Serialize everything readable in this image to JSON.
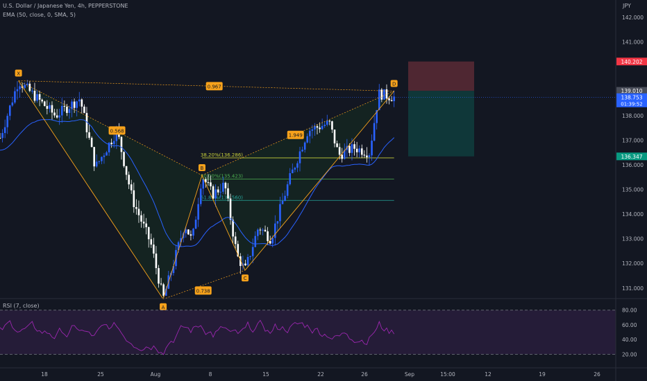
{
  "legend": {
    "symbol_line": "U.S. Dollar / Japanese Yen, 4h, PEPPERSTONE",
    "ema_line": "EMA (50, close, 0, SMA, 5)",
    "rsi_line": "RSI (7, close)",
    "currency": "JPY"
  },
  "colors": {
    "background": "#131722",
    "up_candle": "#2962ff",
    "down_candle": "#ffffff",
    "ema": "#2962ff",
    "pattern": "#f7a21b",
    "fib_38": "#c8d13a",
    "fib_50": "#4caf50",
    "fib_61": "#26a69a",
    "rsi": "#9c27b0",
    "stop_zone": "#5a2a35",
    "target_zone": "#0f3b3c"
  },
  "chart_data": {
    "type": "candlestick",
    "symbol": "U.S. Dollar / Japanese Yen",
    "timeframe": "4h",
    "broker": "PEPPERSTONE",
    "ylim": [
      130.6,
      142.7
    ],
    "y_ticks": [
      131.0,
      132.0,
      133.0,
      134.0,
      135.0,
      136.0,
      137.0,
      138.0,
      141.0,
      142.0
    ],
    "x_ticks": [
      "18",
      "25",
      "Aug",
      "8",
      "15",
      "22",
      "26",
      "Sep",
      "15:00",
      "12",
      "19",
      "26"
    ],
    "price_labels": [
      {
        "value": "140.202",
        "price": 140.202,
        "color": "#f23645"
      },
      {
        "value": "139.010",
        "price": 139.01,
        "color": "#4a4e5a"
      },
      {
        "value": "138.753",
        "price": 138.753,
        "color": "#2962ff",
        "sub": "01:39:52"
      },
      {
        "value": "136.347",
        "price": 136.347,
        "color": "#089981"
      }
    ],
    "current_price": 138.753,
    "xabcd": {
      "points": [
        {
          "label": "X",
          "t": 0.03,
          "price": 139.42
        },
        {
          "label": "A",
          "t": 0.265,
          "price": 130.55
        },
        {
          "label": "B",
          "t": 0.328,
          "price": 135.58
        },
        {
          "label": "C",
          "t": 0.398,
          "price": 131.72
        },
        {
          "label": "D",
          "t": 0.64,
          "price": 139.0
        }
      ],
      "ratios": [
        {
          "value": "0.967",
          "t": 0.348,
          "price": 139.2
        },
        {
          "value": "0.568",
          "t": 0.19,
          "price": 137.4
        },
        {
          "value": "0.738",
          "t": 0.33,
          "price": 130.9
        },
        {
          "value": "1.949",
          "t": 0.48,
          "price": 137.22
        }
      ]
    },
    "fib_levels": [
      {
        "label": "38.20%(136.286)",
        "price": 136.286
      },
      {
        "label": "50.00%(135.423)",
        "price": 135.423
      },
      {
        "label": "61.80%(134.560)",
        "price": 134.56
      }
    ],
    "position": {
      "stop": 140.202,
      "entry": 139.01,
      "target": 136.347
    },
    "rsi": {
      "ylim": [
        10,
        92
      ],
      "ticks": [
        20.0,
        40.0,
        60.0,
        80.0
      ],
      "bands": [
        80,
        20
      ]
    }
  }
}
